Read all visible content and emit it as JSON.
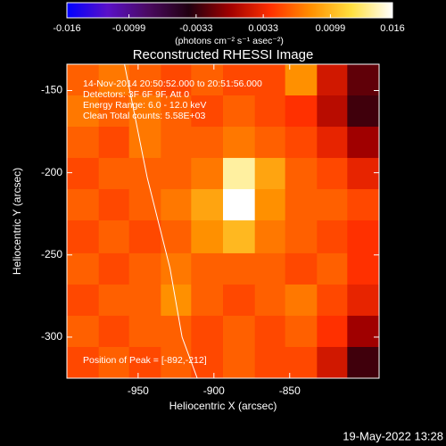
{
  "chart_data": {
    "type": "image",
    "title": "Reconstructed RHESSI Image",
    "x_label": "Heliocentric X (arcsec)",
    "y_label": "Heliocentric Y (arcsec)",
    "annotations": [
      "14-Nov-2014 20:50:52.000 to 20:51:56.000",
      "Detectors: 3F 6F 9F, Att 0",
      "Energy Range: 6.0 - 12.0 keV",
      "Clean     Total counts: 5.58E+03"
    ],
    "peak_label": "Position of Peak = [-892,-212]",
    "footer": "19-May-2022 13:28",
    "xlim": [
      -997,
      -791
    ],
    "ylim": [
      -325,
      -134
    ],
    "xticks": [
      -950,
      -900,
      -850
    ],
    "yticks": [
      -150,
      -200,
      -250,
      -300
    ],
    "xbins": [
      -997,
      -976,
      -956,
      -935,
      -915,
      -894,
      -873,
      -853,
      -832,
      -812,
      -791
    ],
    "ybins": [
      -134,
      -153,
      -172,
      -191,
      -210,
      -229,
      -249,
      -268,
      -287,
      -306,
      -325
    ],
    "values": [
      [
        0.006,
        0.007,
        0.006,
        0.005,
        0.006,
        0.005,
        0.005,
        0.008,
        0.002,
        -0.002
      ],
      [
        0.007,
        0.006,
        0.007,
        0.006,
        0.005,
        0.006,
        0.005,
        0.004,
        0.001,
        -0.003
      ],
      [
        0.006,
        0.005,
        0.007,
        0.006,
        0.006,
        0.007,
        0.006,
        0.005,
        0.003,
        0.0
      ],
      [
        0.005,
        0.006,
        0.006,
        0.006,
        0.007,
        0.014,
        0.009,
        0.006,
        0.005,
        0.003
      ],
      [
        0.006,
        0.005,
        0.006,
        0.007,
        0.009,
        0.016,
        0.008,
        0.006,
        0.006,
        0.005
      ],
      [
        0.005,
        0.006,
        0.005,
        0.006,
        0.008,
        0.01,
        0.007,
        0.006,
        0.005,
        0.004
      ],
      [
        0.006,
        0.005,
        0.006,
        0.007,
        0.006,
        0.006,
        0.006,
        0.005,
        0.006,
        0.004
      ],
      [
        0.005,
        0.006,
        0.006,
        0.008,
        0.006,
        0.005,
        0.006,
        0.007,
        0.005,
        0.003
      ],
      [
        0.006,
        0.005,
        0.006,
        0.006,
        0.005,
        0.006,
        0.005,
        0.006,
        0.004,
        0.0
      ],
      [
        0.005,
        0.006,
        0.005,
        0.006,
        0.005,
        0.006,
        0.005,
        0.005,
        0.002,
        -0.003
      ]
    ],
    "limb": {
      "color": "#ffffff",
      "x": [
        -959,
        -944,
        -929,
        -921,
        -911
      ],
      "y": [
        -134,
        -203,
        -258,
        -300,
        -325
      ]
    },
    "colorbar": {
      "label": "(photons cm⁻² s⁻¹ asec⁻²)",
      "clim": [
        -0.016,
        0.016
      ],
      "ticks": [
        -0.016,
        -0.0099,
        -0.0033,
        0.0033,
        0.0099,
        0.016
      ],
      "colors": [
        "#0000ff",
        "#5a10c8",
        "#4a0a60",
        "#200010",
        "#a00000",
        "#ff3000",
        "#ff9000",
        "#ffe040",
        "#ffffff"
      ]
    }
  }
}
